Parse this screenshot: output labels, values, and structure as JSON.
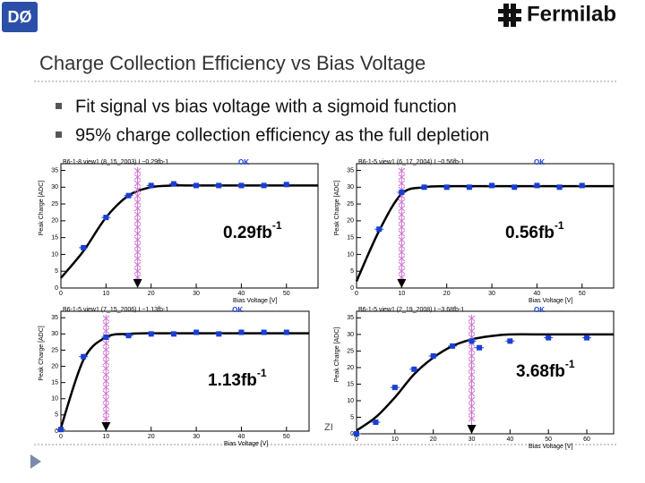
{
  "logo_left": "DØ",
  "logo_right": "Fermilab",
  "title": "Charge Collection Efficiency vs Bias Voltage",
  "bullets": [
    "Fit signal vs bias voltage with a sigmoid function",
    "95% charge collection efficiency as the full depletion"
  ],
  "footer": "ZI",
  "chart_data": [
    {
      "type": "scatter",
      "title": "B6-1-8 view1 (8_15_2003) L~0.29fb-1",
      "status": "OK",
      "xlabel": "Bias Voltage [V]",
      "ylabel": "Peak Charge [ADC]",
      "color": "#1a3fd1",
      "x": [
        5,
        10,
        15,
        20,
        25,
        30,
        35,
        40,
        45,
        50
      ],
      "values": [
        12,
        21,
        27.5,
        30.5,
        31,
        30.5,
        30.5,
        30.5,
        30.5,
        30.8
      ],
      "fit": {
        "color": "#000000",
        "x": [
          0,
          5,
          10,
          15,
          20,
          25,
          30,
          40,
          50,
          57
        ],
        "y": [
          3,
          11,
          21,
          27.5,
          30,
          30.5,
          30.5,
          30.5,
          30.5,
          30.5
        ]
      },
      "depletion_voltage": 17,
      "marker_color": "#d070d0",
      "luminosity": "0.29fb",
      "luminosity_exponent": "-1",
      "xlim": [
        0,
        57
      ],
      "ylim": [
        0,
        37
      ],
      "xticks": [
        0,
        10,
        20,
        30,
        40,
        50
      ],
      "yticks": [
        0,
        5,
        10,
        15,
        20,
        25,
        30,
        35
      ]
    },
    {
      "type": "scatter",
      "title": "B6-1-5 view1 (6_17_2004) L~0.56fb-1",
      "status": "OK",
      "xlabel": "Bias Voltage [V]",
      "ylabel": "Peak Charge [ADC]",
      "color": "#1a3fd1",
      "x": [
        5,
        10,
        15,
        20,
        25,
        30,
        35,
        40,
        45,
        50
      ],
      "values": [
        17.5,
        28.5,
        30,
        30,
        30,
        30.5,
        30,
        30.5,
        30,
        30.5
      ],
      "fit": {
        "color": "#000000",
        "x": [
          0,
          5,
          10,
          15,
          20,
          30,
          40,
          50,
          57
        ],
        "y": [
          2,
          17,
          28,
          30,
          30.3,
          30.3,
          30.3,
          30.3,
          30.3
        ]
      },
      "depletion_voltage": 10,
      "marker_color": "#d070d0",
      "luminosity": "0.56fb",
      "luminosity_exponent": "-1",
      "xlim": [
        0,
        57
      ],
      "ylim": [
        0,
        37
      ],
      "xticks": [
        0,
        10,
        20,
        30,
        40,
        50
      ],
      "yticks": [
        0,
        5,
        10,
        15,
        20,
        25,
        30,
        35
      ]
    },
    {
      "type": "scatter",
      "title": "B6-1-5 view1 (7_15_2006) L~1.13fb-1",
      "status": "OK",
      "xlabel": "Bias Voltage [V]",
      "ylabel": "Peak Charge [ADC]",
      "color": "#1a3fd1",
      "x": [
        0,
        5,
        10,
        15,
        20,
        25,
        30,
        35,
        40,
        45,
        50
      ],
      "values": [
        0.5,
        23,
        29,
        29.5,
        30,
        30,
        30.5,
        30,
        30.5,
        30.5,
        30.5
      ],
      "fit": {
        "color": "#000000",
        "x": [
          0,
          5,
          10,
          15,
          20,
          30,
          40,
          50,
          55
        ],
        "y": [
          1,
          22,
          29,
          30,
          30.2,
          30.2,
          30.2,
          30.2,
          30.2
        ]
      },
      "depletion_voltage": 10,
      "marker_color": "#d070d0",
      "luminosity": "1.13fb",
      "luminosity_exponent": "-1",
      "xlim": [
        0,
        55
      ],
      "ylim": [
        0,
        37
      ],
      "xticks": [
        0,
        10,
        20,
        30,
        40,
        50
      ],
      "yticks": [
        0,
        5,
        10,
        15,
        20,
        25,
        30,
        35
      ]
    },
    {
      "type": "scatter",
      "title": "B6-1-5 view1 (2_19_2008) L~3.68fb-1",
      "status": "OK",
      "xlabel": "Bias Voltage [V]",
      "ylabel": "Peak Charge [ADC]",
      "color": "#1a3fd1",
      "x": [
        0,
        5,
        10,
        15,
        20,
        25,
        30,
        32,
        40,
        50,
        60
      ],
      "values": [
        0,
        3.5,
        14,
        19.5,
        23.5,
        26.5,
        28,
        26,
        28,
        29,
        29
      ],
      "fit": {
        "color": "#000000",
        "x": [
          0,
          5,
          10,
          15,
          20,
          25,
          30,
          35,
          40,
          50,
          60,
          67
        ],
        "y": [
          1,
          5,
          11,
          18,
          23,
          26.5,
          28.5,
          29.5,
          30,
          30,
          30,
          30
        ]
      },
      "depletion_voltage": 30,
      "marker_color": "#d070d0",
      "luminosity": "3.68fb",
      "luminosity_exponent": "-1",
      "xlim": [
        0,
        67
      ],
      "ylim": [
        0,
        37
      ],
      "xticks": [
        0,
        10,
        20,
        30,
        40,
        50,
        60
      ],
      "yticks": [
        0,
        5,
        10,
        15,
        20,
        25,
        30,
        35
      ]
    }
  ]
}
